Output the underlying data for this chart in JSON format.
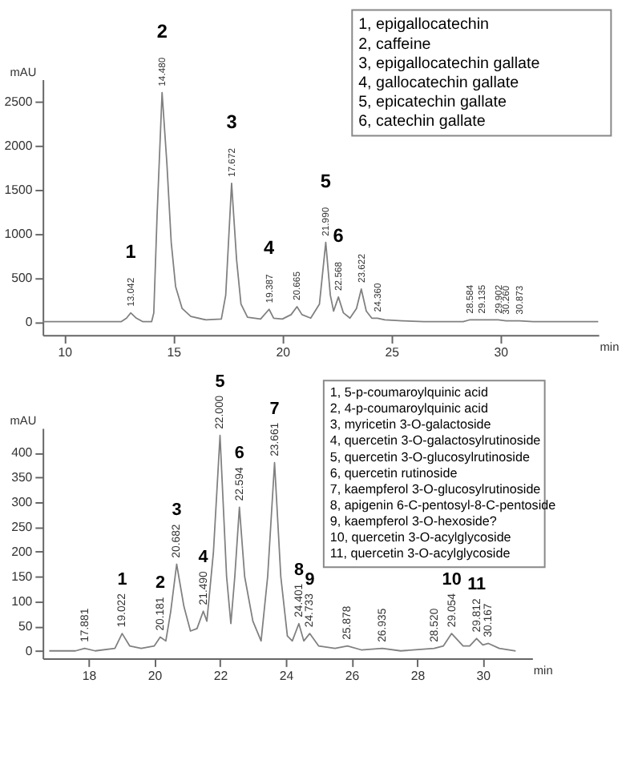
{
  "chart_data": [
    {
      "type": "line",
      "xlabel": "min",
      "ylabel": "mAU",
      "xlim": [
        9,
        34.5
      ],
      "ylim": [
        -150,
        2750
      ],
      "xticks": [
        10,
        15,
        20,
        25,
        30
      ],
      "yticks": [
        0,
        500,
        1000,
        1500,
        2000,
        2500
      ],
      "grid": false,
      "series": [
        {
          "color": "#808080",
          "x": [
            9,
            12.6,
            12.85,
            13.04,
            13.3,
            13.6,
            14.0,
            14.1,
            14.25,
            14.48,
            14.7,
            14.9,
            15.1,
            15.4,
            15.8,
            16.5,
            17.2,
            17.4,
            17.67,
            17.9,
            18.1,
            18.4,
            19.0,
            19.39,
            19.6,
            20.0,
            20.4,
            20.67,
            20.9,
            21.3,
            21.7,
            21.99,
            22.2,
            22.35,
            22.57,
            22.8,
            23.1,
            23.4,
            23.62,
            23.85,
            24.1,
            24.36,
            24.7,
            25.5,
            26.5,
            28.3,
            28.58,
            29.14,
            29.9,
            30.26,
            30.87,
            31.5,
            34.5
          ],
          "values": [
            0,
            0,
            40,
            100,
            40,
            0,
            0,
            100,
            1200,
            2600,
            1800,
            900,
            400,
            150,
            60,
            20,
            30,
            300,
            1570,
            700,
            200,
            50,
            30,
            140,
            40,
            30,
            80,
            170,
            80,
            40,
            200,
            900,
            300,
            120,
            280,
            100,
            40,
            150,
            370,
            120,
            40,
            40,
            20,
            10,
            0,
            0,
            20,
            20,
            20,
            10,
            10,
            0,
            0
          ]
        }
      ],
      "annotations": [
        {
          "text": "13.042",
          "x": 13.042,
          "y": 100
        },
        {
          "text": "1",
          "x": 13.042,
          "y": 100
        },
        {
          "text": "14.480",
          "x": 14.48,
          "y": 2600
        },
        {
          "text": "2",
          "x": 14.48,
          "y": 2600
        },
        {
          "text": "17.672",
          "x": 17.672,
          "y": 1570
        },
        {
          "text": "3",
          "x": 17.672,
          "y": 1570
        },
        {
          "text": "19.387",
          "x": 19.387,
          "y": 140
        },
        {
          "text": "4",
          "x": 19.387,
          "y": 140
        },
        {
          "text": "20.665",
          "x": 20.665,
          "y": 170
        },
        {
          "text": "21.990",
          "x": 21.99,
          "y": 900
        },
        {
          "text": "5",
          "x": 21.99,
          "y": 900
        },
        {
          "text": "22.568",
          "x": 22.568,
          "y": 280
        },
        {
          "text": "6",
          "x": 22.568,
          "y": 280
        },
        {
          "text": "23.622",
          "x": 23.622,
          "y": 370
        },
        {
          "text": "24.360",
          "x": 24.36,
          "y": 40
        },
        {
          "text": "28.584",
          "x": 28.584,
          "y": 20
        },
        {
          "text": "29.135",
          "x": 29.135,
          "y": 20
        },
        {
          "text": "29.902",
          "x": 29.902,
          "y": 20
        },
        {
          "text": "30.260",
          "x": 30.26,
          "y": 10
        },
        {
          "text": "30.873",
          "x": 30.873,
          "y": 10
        },
        "1, epigallocatechin",
        "2, caffeine",
        "3, epigallocatechin gallate",
        "4, gallocatechin gallate",
        "5, epicatechin gallate",
        "6, catechin gallate"
      ]
    },
    {
      "type": "line",
      "xlabel": "min",
      "ylabel": "mAU",
      "xlim": [
        16.6,
        31.5
      ],
      "ylim": [
        -15,
        450
      ],
      "xticks": [
        18,
        20,
        22,
        24,
        26,
        28,
        30
      ],
      "yticks": [
        0,
        50,
        100,
        150,
        200,
        250,
        300,
        350,
        400
      ],
      "grid": false,
      "series": [
        {
          "color": "#808080",
          "x": [
            16.8,
            17.6,
            17.88,
            18.2,
            18.8,
            19.02,
            19.25,
            19.6,
            20.0,
            20.18,
            20.35,
            20.5,
            20.68,
            20.9,
            21.1,
            21.3,
            21.49,
            21.6,
            21.8,
            22.0,
            22.2,
            22.33,
            22.45,
            22.59,
            22.75,
            23.0,
            23.25,
            23.45,
            23.66,
            23.85,
            24.05,
            24.2,
            24.4,
            24.55,
            24.73,
            25.0,
            25.5,
            25.88,
            26.3,
            26.94,
            27.5,
            28.52,
            28.8,
            29.05,
            29.4,
            29.6,
            29.81,
            30.0,
            30.17,
            30.5,
            31.0
          ],
          "values": [
            0,
            0,
            5,
            0,
            5,
            35,
            10,
            5,
            10,
            28,
            20,
            80,
            175,
            90,
            40,
            45,
            80,
            60,
            200,
            435,
            150,
            55,
            150,
            290,
            150,
            60,
            20,
            150,
            380,
            150,
            30,
            20,
            55,
            20,
            35,
            10,
            5,
            10,
            2,
            5,
            0,
            5,
            10,
            35,
            10,
            10,
            25,
            12,
            15,
            5,
            0
          ]
        }
      ],
      "annotations": [
        {
          "text": "17.881",
          "x": 17.881,
          "y": 5
        },
        {
          "text": "19.022",
          "x": 19.022,
          "y": 35
        },
        {
          "text": "1",
          "x": 19.022,
          "y": 35
        },
        {
          "text": "20.181",
          "x": 20.181,
          "y": 28
        },
        {
          "text": "2",
          "x": 20.181,
          "y": 28
        },
        {
          "text": "20.682",
          "x": 20.682,
          "y": 175
        },
        {
          "text": "3",
          "x": 20.682,
          "y": 175
        },
        {
          "text": "21.490",
          "x": 21.49,
          "y": 80
        },
        {
          "text": "4",
          "x": 21.49,
          "y": 80
        },
        {
          "text": "22.000",
          "x": 22.0,
          "y": 435
        },
        {
          "text": "5",
          "x": 22.0,
          "y": 435
        },
        {
          "text": "22.594",
          "x": 22.594,
          "y": 290
        },
        {
          "text": "6",
          "x": 22.594,
          "y": 290
        },
        {
          "text": "23.661",
          "x": 23.661,
          "y": 380
        },
        {
          "text": "7",
          "x": 23.661,
          "y": 380
        },
        {
          "text": "24.401",
          "x": 24.401,
          "y": 55
        },
        {
          "text": "8",
          "x": 24.401,
          "y": 55
        },
        {
          "text": "24.733",
          "x": 24.733,
          "y": 35
        },
        {
          "text": "9",
          "x": 24.733,
          "y": 35
        },
        {
          "text": "25.878",
          "x": 25.878,
          "y": 10
        },
        {
          "text": "26.935",
          "x": 26.935,
          "y": 5
        },
        {
          "text": "28.520",
          "x": 28.52,
          "y": 5
        },
        {
          "text": "29.054",
          "x": 29.054,
          "y": 35
        },
        {
          "text": "10",
          "x": 29.054,
          "y": 35
        },
        {
          "text": "29.812",
          "x": 29.812,
          "y": 25
        },
        {
          "text": "11",
          "x": 29.812,
          "y": 25
        },
        {
          "text": "30.167",
          "x": 30.167,
          "y": 15
        },
        "1, 5-p-coumaroylquinic acid",
        "2, 4-p-coumaroylquinic acid",
        "3, myricetin 3-O-galactoside",
        "4, quercetin 3-O-galactosylrutinoside",
        "5, quercetin 3-O-glucosylrutinoside",
        "6, quercetin rutinoside",
        "7, kaempferol 3-O-glucosylrutinoside",
        "8, apigenin 6-C-pentosyl-8-C-pentoside",
        "9, kaempferol 3-O-hexoside?",
        "10, quercetin 3-O-acylglycoside",
        "11, quercetin 3-O-acylglycoside"
      ]
    }
  ]
}
